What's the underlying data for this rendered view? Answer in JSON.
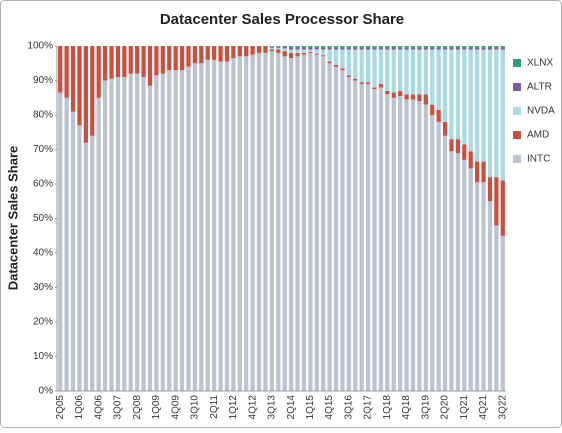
{
  "chart_data": {
    "type": "stacked_bar",
    "title": "Datacenter Sales Processor Share",
    "y_label": "Datacenter Sales Share",
    "categories": [
      "2Q05",
      null,
      null,
      "1Q06",
      null,
      null,
      "4Q06",
      null,
      null,
      "3Q07",
      null,
      null,
      "2Q08",
      null,
      null,
      "1Q09",
      null,
      null,
      "4Q09",
      null,
      null,
      "3Q10",
      null,
      null,
      "2Q11",
      null,
      null,
      "1Q12",
      null,
      null,
      "4Q12",
      null,
      null,
      "3Q13",
      null,
      null,
      "2Q14",
      null,
      null,
      "1Q15",
      null,
      null,
      "4Q15",
      null,
      null,
      "3Q16",
      null,
      null,
      "2Q17",
      null,
      null,
      "1Q18",
      null,
      null,
      "4Q18",
      null,
      null,
      "3Q19",
      null,
      null,
      "2Q20",
      null,
      null,
      "1Q21",
      null,
      null,
      "4Q21",
      null,
      null,
      "3Q22"
    ],
    "series": [
      {
        "name": "INTC",
        "color": "#bcc3d0",
        "values": [
          86.5,
          85,
          81,
          77,
          72,
          74,
          85,
          90,
          90.5,
          91,
          91,
          92,
          92,
          91,
          88.5,
          91.5,
          92,
          93,
          93,
          93,
          94,
          95,
          95,
          96,
          96,
          95.5,
          95.5,
          96.5,
          97,
          97,
          97.5,
          98,
          98,
          98.5,
          98,
          97,
          96.5,
          97,
          97.5,
          98,
          97.5,
          97,
          95,
          94,
          93,
          91,
          90,
          89,
          89,
          87.5,
          88,
          86,
          85,
          85.5,
          84.5,
          84.5,
          84,
          83,
          80,
          78,
          74,
          69.5,
          69,
          67,
          64.5,
          60.5,
          60.5,
          55,
          48,
          45
        ]
      },
      {
        "name": "AMD",
        "color": "#c9503f",
        "values": [
          13.5,
          15,
          19,
          23,
          28,
          26,
          15,
          10,
          9.5,
          9,
          9,
          8,
          8,
          9,
          11.5,
          8.5,
          8,
          7,
          7,
          7,
          6,
          5,
          5,
          4,
          4,
          4.5,
          4.5,
          3.5,
          3,
          3,
          2.5,
          2,
          2,
          0.5,
          1,
          1.5,
          1.5,
          1,
          0.5,
          0.3,
          0.3,
          0.3,
          0.5,
          0.5,
          0.5,
          0.5,
          0.5,
          0.5,
          0.5,
          0.5,
          1,
          1,
          1.5,
          1.5,
          1.5,
          1.5,
          2,
          3,
          3,
          3.5,
          4,
          3.5,
          4,
          4.5,
          5,
          6,
          6,
          7,
          14,
          16
        ]
      },
      {
        "name": "NVDA",
        "color": "#a8d9e4",
        "values": [
          0,
          0,
          0,
          0,
          0,
          0,
          0,
          0,
          0,
          0,
          0,
          0,
          0,
          0,
          0,
          0,
          0,
          0,
          0,
          0,
          0,
          0,
          0,
          0,
          0,
          0,
          0,
          0,
          0,
          0,
          0,
          0,
          0,
          0.5,
          0.5,
          0.8,
          1,
          1,
          1,
          0.7,
          1.2,
          1.7,
          3.5,
          4.5,
          5.5,
          7.5,
          8.5,
          9.5,
          9.5,
          11,
          10,
          12,
          12.5,
          12,
          13,
          13,
          13,
          13,
          16,
          17.5,
          21,
          26,
          26,
          27.5,
          29.5,
          32.5,
          32.5,
          37,
          37,
          38
        ]
      },
      {
        "name": "ALTR",
        "color": "#7d5aa6",
        "values": [
          0,
          0,
          0,
          0,
          0,
          0,
          0,
          0,
          0,
          0,
          0,
          0,
          0,
          0,
          0,
          0,
          0,
          0,
          0,
          0,
          0,
          0,
          0,
          0,
          0,
          0,
          0,
          0,
          0,
          0,
          0,
          0,
          0,
          0.3,
          0.3,
          0.4,
          0.5,
          0.5,
          0.5,
          0.5,
          0.5,
          0.5,
          0.5,
          0.5,
          0.5,
          0.5,
          0.5,
          0.5,
          0.5,
          0.5,
          0.5,
          0.5,
          0.5,
          0.5,
          0.5,
          0.5,
          0.5,
          0.5,
          0.5,
          0.5,
          0.5,
          0.5,
          0.5,
          0.5,
          0.5,
          0.5,
          0.5,
          0.5,
          0.5,
          0.5
        ]
      },
      {
        "name": "XLNX",
        "color": "#2f9d78",
        "values": [
          0,
          0,
          0,
          0,
          0,
          0,
          0,
          0,
          0,
          0,
          0,
          0,
          0,
          0,
          0,
          0,
          0,
          0,
          0,
          0,
          0,
          0,
          0,
          0,
          0,
          0,
          0,
          0,
          0,
          0,
          0,
          0,
          0,
          0.2,
          0.2,
          0.3,
          0.5,
          0.5,
          0.5,
          0.5,
          0.5,
          0.5,
          0.5,
          0.5,
          0.5,
          0.5,
          0.5,
          0.5,
          0.5,
          0.5,
          0.5,
          0.5,
          0.5,
          0.5,
          0.5,
          0.5,
          0.5,
          0.5,
          0.5,
          0.5,
          0.5,
          0.5,
          0.5,
          0.5,
          0.5,
          0.5,
          0.5,
          0.5,
          0.5,
          0.5
        ]
      }
    ],
    "ylim": [
      0,
      100
    ],
    "yticks": [
      {
        "value": 0,
        "label": "0%"
      },
      {
        "value": 10,
        "label": "10%"
      },
      {
        "value": 20,
        "label": "20%"
      },
      {
        "value": 30,
        "label": "30%"
      },
      {
        "value": 40,
        "label": "40%"
      },
      {
        "value": 50,
        "label": "50%"
      },
      {
        "value": 60,
        "label": "60%"
      },
      {
        "value": 70,
        "label": "70%"
      },
      {
        "value": 80,
        "label": "80%"
      },
      {
        "value": 90,
        "label": "90%"
      },
      {
        "value": 100,
        "label": "100%"
      }
    ],
    "legend": "right"
  }
}
